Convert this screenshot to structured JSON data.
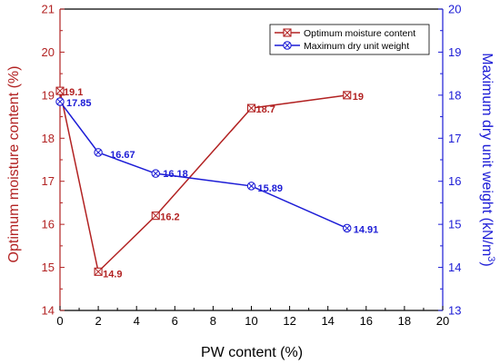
{
  "chart_data": {
    "type": "line",
    "xlabel": "PW content (%)",
    "ylabel_left": "Optimum moisture content (%)",
    "ylabel_right": "Maximum dry unit weight (kN/m",
    "ylabel_right_sup": "3",
    "ylabel_right_close": ")",
    "xlim": [
      0,
      20
    ],
    "ylim_left": [
      14,
      21
    ],
    "ylim_right": [
      13,
      20
    ],
    "x_ticks": [
      "0",
      "2",
      "4",
      "6",
      "8",
      "10",
      "12",
      "14",
      "16",
      "18",
      "20"
    ],
    "y_left_ticks": [
      "14",
      "15",
      "16",
      "17",
      "18",
      "19",
      "20",
      "21"
    ],
    "y_right_ticks": [
      "13",
      "14",
      "15",
      "16",
      "17",
      "18",
      "19",
      "20"
    ],
    "legend_position": "top-right",
    "grid": false,
    "series": [
      {
        "name": "Optimum moisture content",
        "axis": "left",
        "color": "#b22222",
        "marker": "square-x",
        "x": [
          0,
          2,
          5,
          10,
          15
        ],
        "y": [
          19.1,
          14.9,
          16.2,
          18.7,
          19
        ],
        "labels": [
          "19.1",
          "14.9",
          "16.2",
          "18.7",
          "19"
        ]
      },
      {
        "name": "Maximum dry unit weight",
        "axis": "right",
        "color": "#1c1cd6",
        "marker": "circle-x",
        "x": [
          0,
          2,
          5,
          10,
          15
        ],
        "y": [
          17.85,
          16.67,
          16.18,
          15.89,
          14.91
        ],
        "labels": [
          "17.85",
          "16.67",
          "16.18",
          "15.89",
          "14.91"
        ]
      }
    ]
  }
}
